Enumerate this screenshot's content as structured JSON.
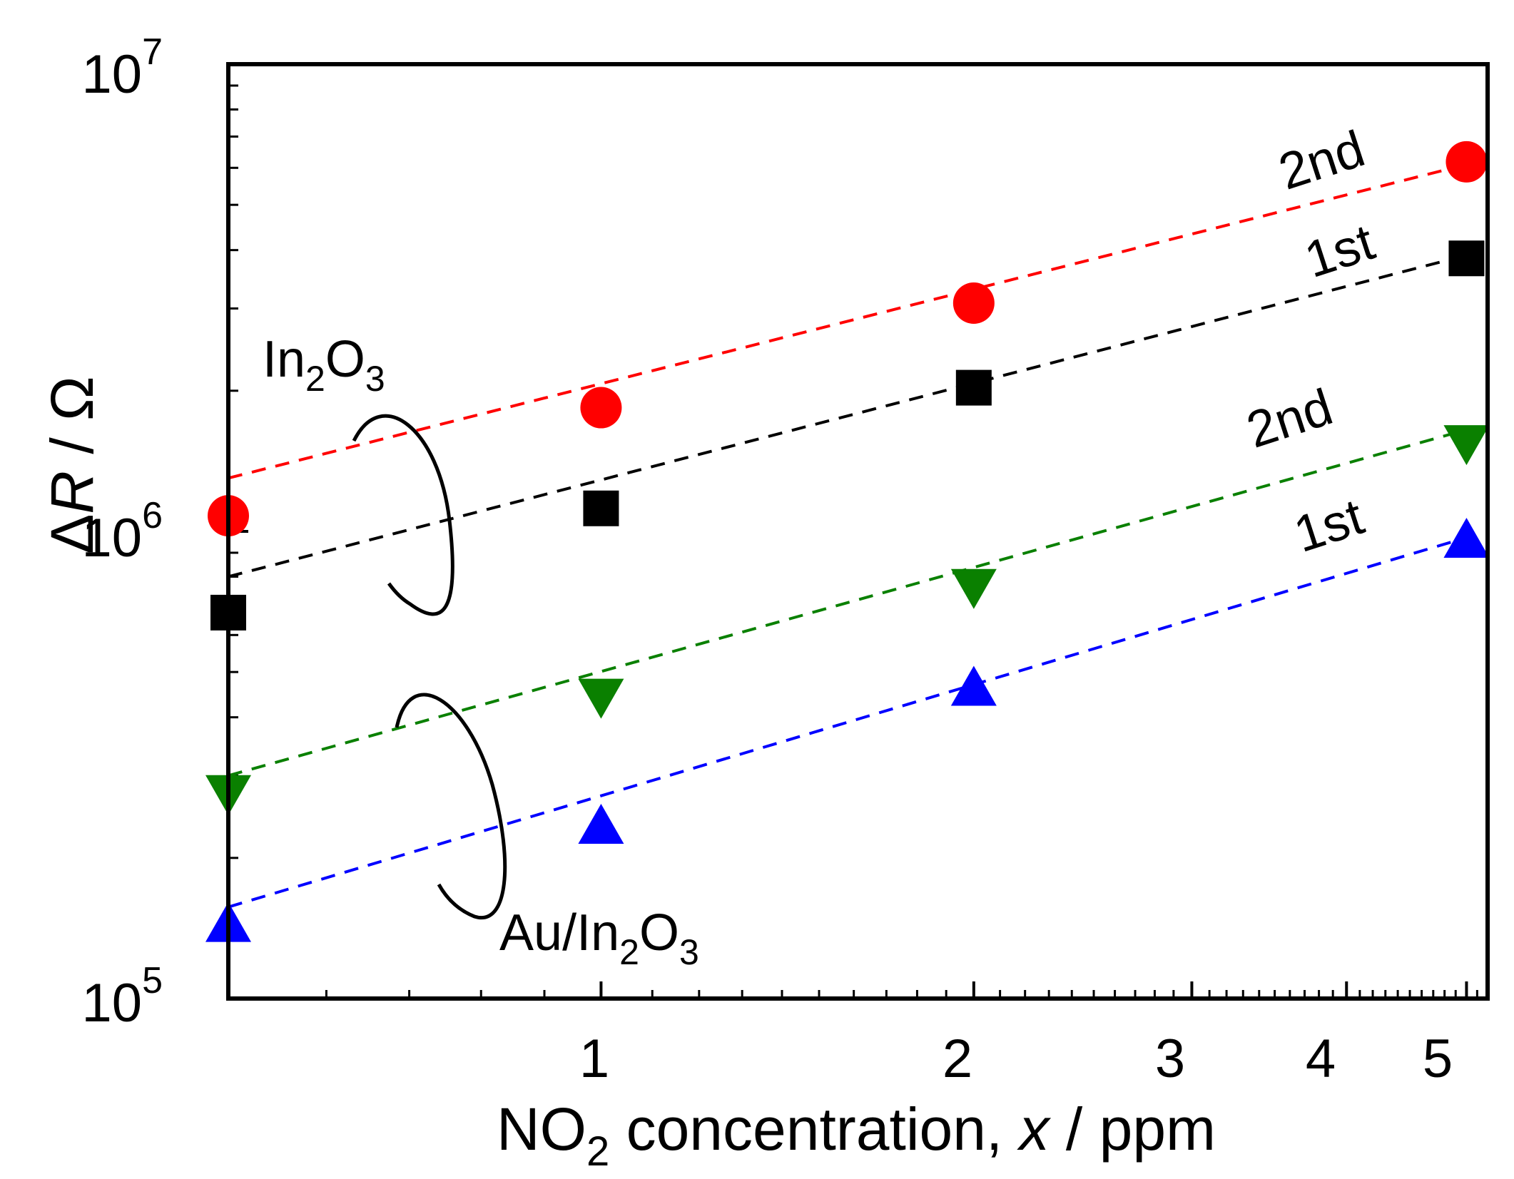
{
  "chart_data": {
    "type": "scatter",
    "x_scale": "log",
    "y_scale": "log",
    "xlim": [
      0.5,
      5.2
    ],
    "ylim": [
      100000,
      10000000
    ],
    "grid": false,
    "legend": "none",
    "xlabel": {
      "pre": "NO",
      "sub": "2",
      "mid": " concentration, ",
      "italic": "x",
      "post": " / ppm"
    },
    "ylabel": {
      "pre": "Δ",
      "italic": "R",
      "post": " / Ω"
    },
    "x_ticks": [
      {
        "value": 1,
        "label": "1"
      },
      {
        "value": 2,
        "label": "2"
      },
      {
        "value": 3,
        "label": "3"
      },
      {
        "value": 4,
        "label": "4"
      },
      {
        "value": 5,
        "label": "5"
      }
    ],
    "y_ticks": [
      {
        "value": 100000,
        "base": "10",
        "exp": "5"
      },
      {
        "value": 1000000,
        "base": "10",
        "exp": "6"
      },
      {
        "value": 10000000,
        "base": "10",
        "exp": "7"
      }
    ],
    "series": [
      {
        "key": "in2o3-2nd",
        "color": "#ff0000",
        "marker": "circle",
        "x": [
          0.5,
          1,
          2,
          5
        ],
        "y": [
          1080000,
          1840000,
          3080000,
          6180000
        ],
        "fit": {
          "x": [
            0.5,
            5
          ],
          "y": [
            1300000,
            6100000
          ]
        }
      },
      {
        "key": "in2o3-1st",
        "color": "#000000",
        "marker": "square",
        "x": [
          0.5,
          1,
          2,
          5
        ],
        "y": [
          670000,
          1120000,
          2030000,
          3840000
        ],
        "fit": {
          "x": [
            0.5,
            5
          ],
          "y": [
            800000,
            3900000
          ]
        }
      },
      {
        "key": "au-in2o3-2nd",
        "color": "#0a8000",
        "marker": "triangle-down",
        "x": [
          0.5,
          1,
          2,
          5
        ],
        "y": [
          278000,
          447000,
          768000,
          1560000
        ],
        "fit": {
          "x": [
            0.5,
            5
          ],
          "y": [
            300000,
            1650000
          ]
        }
      },
      {
        "key": "au-in2o3-1st",
        "color": "#0000ff",
        "marker": "triangle-up",
        "x": [
          0.5,
          1,
          2,
          5
        ],
        "y": [
          143000,
          232000,
          458000,
          950000
        ],
        "fit": {
          "x": [
            0.5,
            5
          ],
          "y": [
            157000,
            970000
          ]
        }
      }
    ],
    "annotations": {
      "in2o3": {
        "pre": "In",
        "sub1": "2",
        "mid": "O",
        "sub2": "3"
      },
      "au_in2o3": {
        "pre": "Au/In",
        "sub1": "2",
        "mid": "O",
        "sub2": "3"
      },
      "red_label": "2nd",
      "black_label": "1st",
      "green_label": "2nd",
      "blue_label": "1st"
    }
  }
}
